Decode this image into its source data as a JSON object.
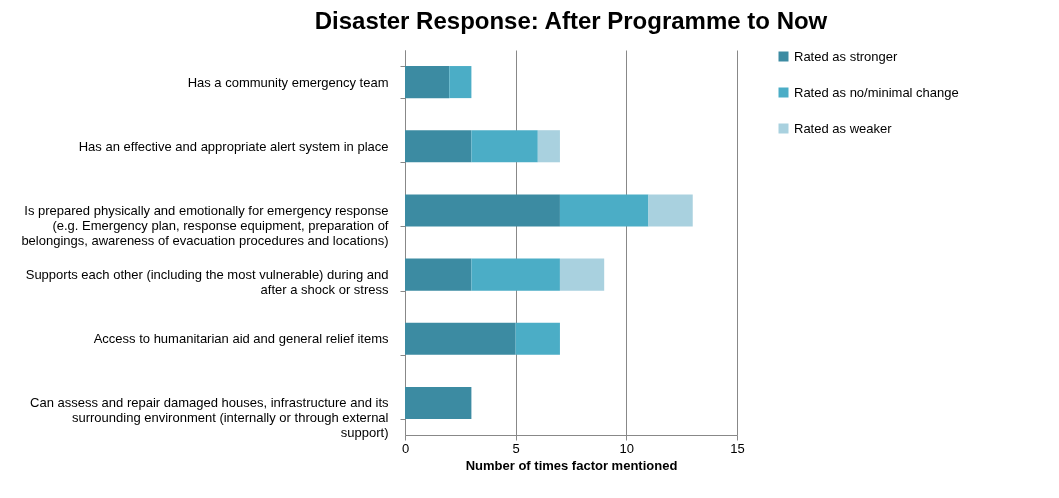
{
  "chart_data": {
    "type": "bar",
    "orientation": "horizontal",
    "stacked": true,
    "title": "Disaster Response: After Programme to Now",
    "xlabel": "Number of times factor mentioned",
    "categories": [
      "Has a community emergency team",
      "Has an effective and appropriate alert system in place",
      "Is prepared physically and emotionally for emergency response (e.g. Emergency plan, response equipment, preparation of belongings, awareness of evacuation procedures and locations)",
      "Supports each other (including the most vulnerable) during and after a shock or stress",
      "Access to humanitarian aid and general relief items",
      "Can assess and repair damaged houses, infrastructure and its surrounding environment (internally or through external support)"
    ],
    "series": [
      {
        "name": "Rated as stronger",
        "color": "#3c8ba2",
        "values": [
          2,
          3,
          7,
          3,
          5,
          3
        ]
      },
      {
        "name": "Rated as no/minimal change",
        "color": "#4badc6",
        "values": [
          1,
          3,
          4,
          4,
          2,
          0
        ]
      },
      {
        "name": "Rated as weaker",
        "color": "#a9d1df",
        "values": [
          0,
          1,
          2,
          2,
          0,
          0
        ]
      }
    ],
    "xlim": [
      0,
      15
    ],
    "xticks": [
      0,
      5,
      10,
      15
    ],
    "grid": "x",
    "legend": "right"
  }
}
